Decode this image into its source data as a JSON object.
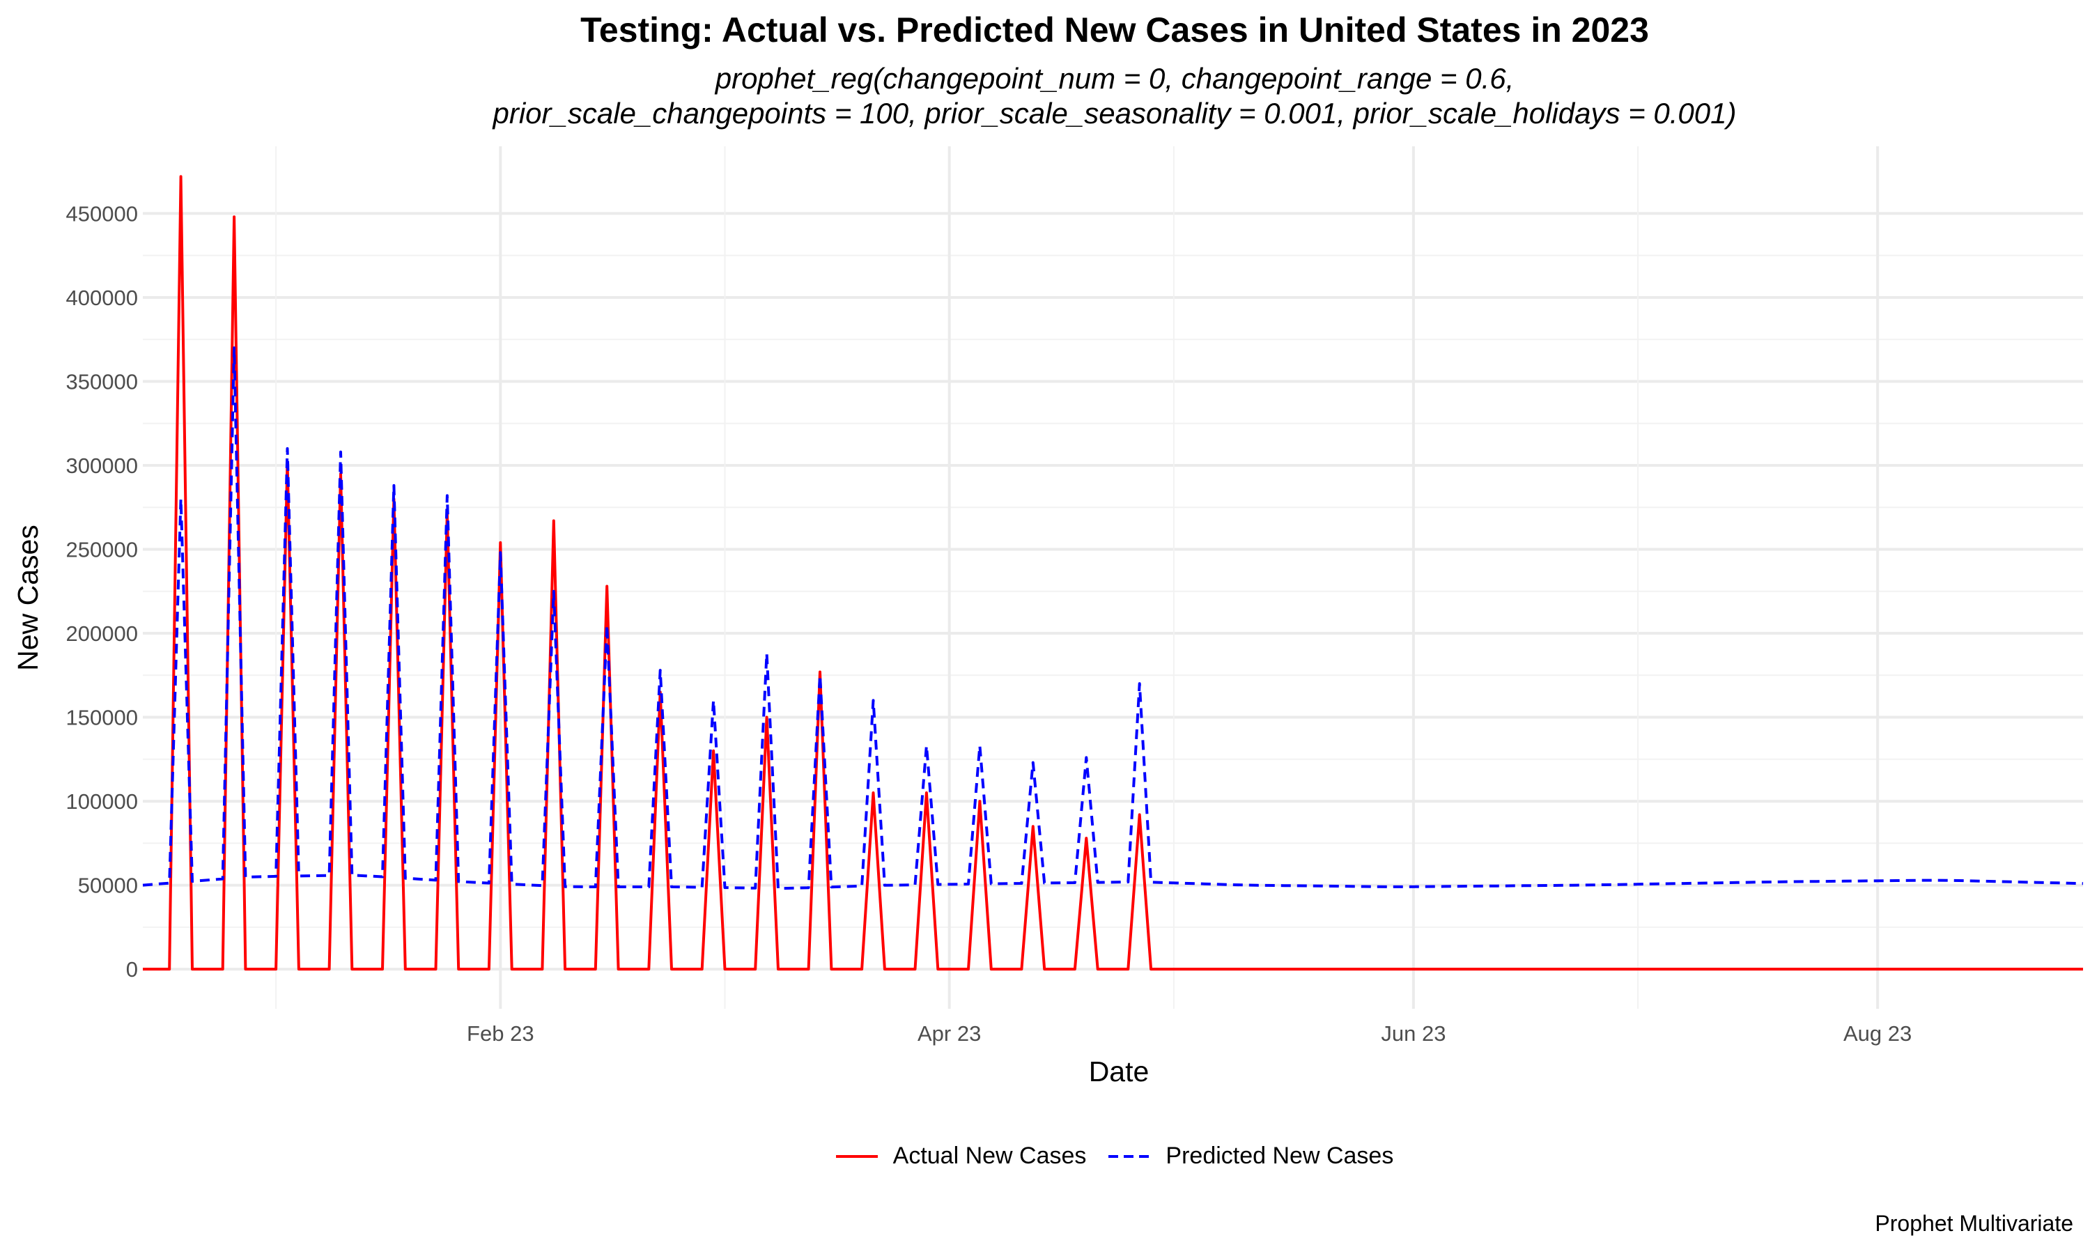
{
  "chart_data": {
    "type": "line",
    "title": "Testing: Actual vs. Predicted New Cases in United States in 2023",
    "subtitle": "prophet_reg(changepoint_num = 0, changepoint_range = 0.6,\nprior_scale_changepoints = 100, prior_scale_seasonality = 0.001, prior_scale_holidays = 0.001)",
    "xlabel": "Date",
    "ylabel": "New Cases",
    "caption": "Prophet Multivariate",
    "x_range": [
      "2023-01-07",
      "2023-09-19"
    ],
    "ylim": [
      -23600,
      490000
    ],
    "x_ticks": [
      {
        "date": "2023-02-23",
        "label": "Feb 23"
      },
      {
        "date": "2023-04-23",
        "label": "Apr 23"
      },
      {
        "date": "2023-06-23",
        "label": "Jun 23"
      },
      {
        "date": "2023-08-23",
        "label": "Aug 23"
      }
    ],
    "y_ticks": [
      0,
      50000,
      100000,
      150000,
      200000,
      250000,
      300000,
      350000,
      400000,
      450000
    ],
    "grid": true,
    "legend_position": "bottom",
    "series": [
      {
        "name": "Actual New Cases",
        "color": "#ff0000",
        "line_style": "solid",
        "baseline": {
          "start": "2023-01-07",
          "end": "2023-09-19",
          "value": 0
        },
        "points": [
          {
            "date": "2023-01-12",
            "value": 472000
          },
          {
            "date": "2023-01-19",
            "value": 448000
          },
          {
            "date": "2023-01-26",
            "value": 302000
          },
          {
            "date": "2023-02-02",
            "value": 295000
          },
          {
            "date": "2023-02-09",
            "value": 280000
          },
          {
            "date": "2023-02-16",
            "value": 272000
          },
          {
            "date": "2023-02-23",
            "value": 254000
          },
          {
            "date": "2023-03-02",
            "value": 267000
          },
          {
            "date": "2023-03-09",
            "value": 228000
          },
          {
            "date": "2023-03-16",
            "value": 165000
          },
          {
            "date": "2023-03-23",
            "value": 130000
          },
          {
            "date": "2023-03-30",
            "value": 150000
          },
          {
            "date": "2023-04-06",
            "value": 177000
          },
          {
            "date": "2023-04-13",
            "value": 105000
          },
          {
            "date": "2023-04-20",
            "value": 105000
          },
          {
            "date": "2023-04-27",
            "value": 100000
          },
          {
            "date": "2023-05-04",
            "value": 85000
          },
          {
            "date": "2023-05-11",
            "value": 78000
          },
          {
            "date": "2023-05-18",
            "value": 92000
          }
        ]
      },
      {
        "name": "Predicted New Cases",
        "color": "#0000ff",
        "line_style": "dashed",
        "baseline_points": [
          {
            "date": "2023-01-07",
            "value": 50000
          },
          {
            "date": "2023-01-21",
            "value": 55000
          },
          {
            "date": "2023-02-04",
            "value": 56000
          },
          {
            "date": "2023-02-18",
            "value": 52000
          },
          {
            "date": "2023-03-04",
            "value": 49000
          },
          {
            "date": "2023-03-18",
            "value": 49000
          },
          {
            "date": "2023-04-01",
            "value": 48000
          },
          {
            "date": "2023-04-15",
            "value": 50000
          },
          {
            "date": "2023-05-01",
            "value": 51000
          },
          {
            "date": "2023-05-18",
            "value": 52000
          },
          {
            "date": "2023-06-01",
            "value": 50000
          },
          {
            "date": "2023-06-21",
            "value": 49000
          },
          {
            "date": "2023-07-15",
            "value": 50000
          },
          {
            "date": "2023-08-10",
            "value": 52000
          },
          {
            "date": "2023-08-31",
            "value": 53000
          },
          {
            "date": "2023-09-19",
            "value": 51000
          }
        ],
        "points": [
          {
            "date": "2023-01-12",
            "value": 280000
          },
          {
            "date": "2023-01-19",
            "value": 370000
          },
          {
            "date": "2023-01-26",
            "value": 310000
          },
          {
            "date": "2023-02-02",
            "value": 308000
          },
          {
            "date": "2023-02-09",
            "value": 288000
          },
          {
            "date": "2023-02-16",
            "value": 282000
          },
          {
            "date": "2023-02-23",
            "value": 248000
          },
          {
            "date": "2023-03-02",
            "value": 225000
          },
          {
            "date": "2023-03-09",
            "value": 205000
          },
          {
            "date": "2023-03-16",
            "value": 178000
          },
          {
            "date": "2023-03-23",
            "value": 160000
          },
          {
            "date": "2023-03-30",
            "value": 188000
          },
          {
            "date": "2023-04-06",
            "value": 175000
          },
          {
            "date": "2023-04-13",
            "value": 160000
          },
          {
            "date": "2023-04-20",
            "value": 133000
          },
          {
            "date": "2023-04-27",
            "value": 133000
          },
          {
            "date": "2023-05-04",
            "value": 123000
          },
          {
            "date": "2023-05-11",
            "value": 126000
          },
          {
            "date": "2023-05-18",
            "value": 170000
          }
        ]
      }
    ]
  }
}
